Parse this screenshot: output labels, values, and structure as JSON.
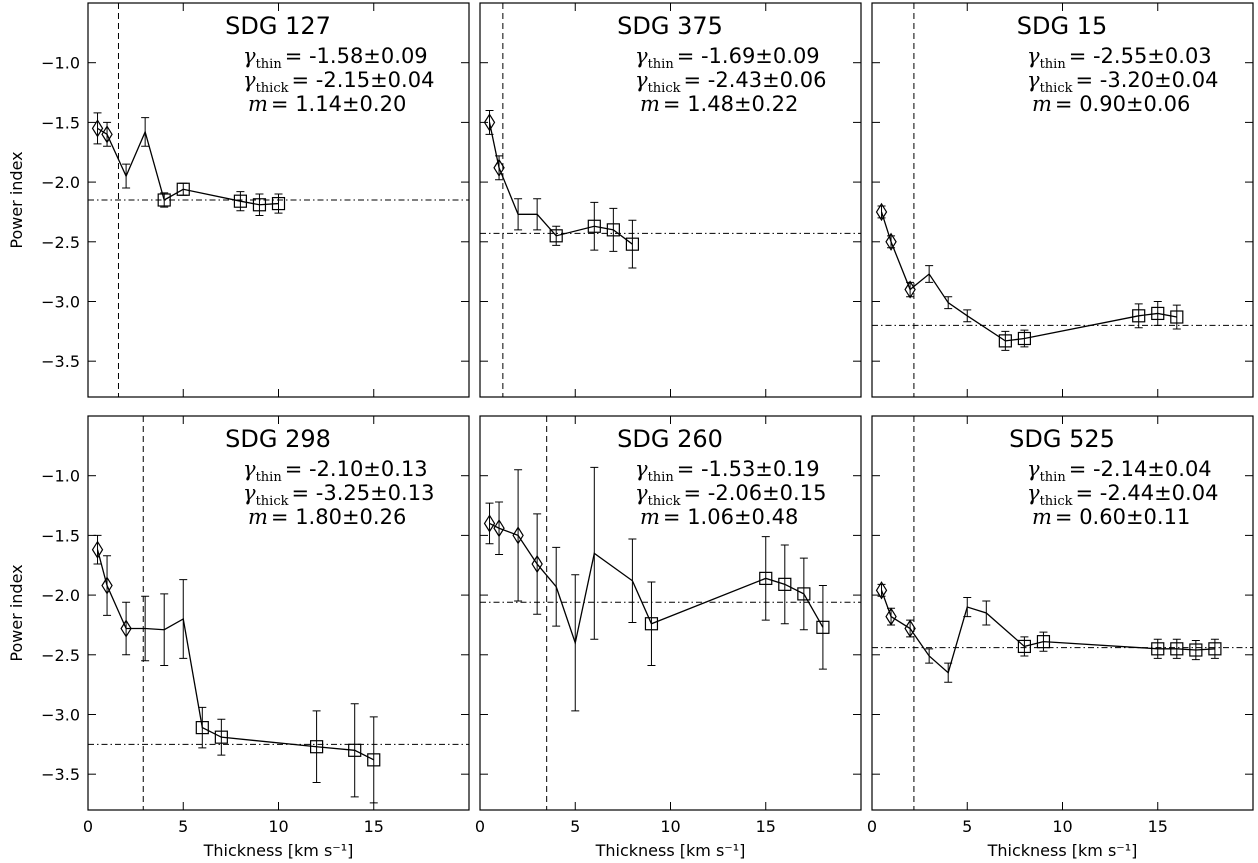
{
  "chart_data": [
    {
      "type": "errorbar",
      "title": "SDG 127",
      "annotations": [
        {
          "symbol": "γ",
          "sub": "thin",
          "value": "= -1.58±0.09"
        },
        {
          "symbol": "γ",
          "sub": "thick",
          "value": "= -2.15±0.04"
        },
        {
          "symbol": "m",
          "value": "= 1.14±0.20"
        }
      ],
      "x": [
        0.5,
        1,
        2,
        3,
        4,
        5,
        8,
        9,
        10
      ],
      "values": [
        -1.55,
        -1.6,
        -1.95,
        -1.58,
        -2.15,
        -2.06,
        -2.16,
        -2.19,
        -2.18
      ],
      "errors": [
        0.13,
        0.1,
        0.1,
        0.12,
        0.06,
        0.05,
        0.08,
        0.09,
        0.08
      ],
      "markers": [
        "diamond",
        "diamond",
        "none",
        "none",
        "square",
        "square",
        "square",
        "square",
        "square"
      ],
      "vline": 1.6,
      "hline": -2.15,
      "xlim": [
        0,
        20
      ],
      "ylim": [
        -3.8,
        -0.5
      ],
      "xticks": [
        0,
        5,
        10,
        15
      ],
      "ylabel": "Power index",
      "yticks": [
        {
          "value": -3.5,
          "label": "−3.5"
        },
        {
          "value": -3.0,
          "label": "−3.0"
        },
        {
          "value": -2.5,
          "label": "−2.5"
        },
        {
          "value": -2.0,
          "label": "−2.0"
        },
        {
          "value": -1.5,
          "label": "−1.5"
        },
        {
          "value": -1.0,
          "label": "−1.0"
        }
      ]
    },
    {
      "type": "errorbar",
      "title": "SDG 375",
      "annotations": [
        {
          "symbol": "γ",
          "sub": "thin",
          "value": "= -1.69±0.09"
        },
        {
          "symbol": "γ",
          "sub": "thick",
          "value": "= -2.43±0.06"
        },
        {
          "symbol": "m",
          "value": "= 1.48±0.22"
        }
      ],
      "x": [
        0.5,
        1,
        2,
        3,
        4,
        6,
        7,
        8
      ],
      "values": [
        -1.5,
        -1.88,
        -2.27,
        -2.27,
        -2.45,
        -2.37,
        -2.4,
        -2.52
      ],
      "errors": [
        0.1,
        0.1,
        0.13,
        0.13,
        0.08,
        0.2,
        0.18,
        0.2
      ],
      "markers": [
        "diamond",
        "diamond",
        "none",
        "none",
        "square",
        "square",
        "square",
        "square"
      ],
      "vline": 1.2,
      "hline": -2.43,
      "xlim": [
        0,
        20
      ],
      "ylim": [
        -3.8,
        -0.5
      ],
      "xticks": [
        0,
        5,
        10,
        15
      ],
      "yticks": [
        -3.5,
        -3.0,
        -2.5,
        -2.0,
        -1.5,
        -1.0
      ]
    },
    {
      "type": "errorbar",
      "title": "SDG 15",
      "annotations": [
        {
          "symbol": "γ",
          "sub": "thin",
          "value": "= -2.55±0.03"
        },
        {
          "symbol": "γ",
          "sub": "thick",
          "value": "= -3.20±0.04"
        },
        {
          "symbol": "m",
          "value": "= 0.90±0.06"
        }
      ],
      "x": [
        0.5,
        1,
        2,
        3,
        4,
        5,
        7,
        8,
        14,
        15,
        16
      ],
      "values": [
        -2.25,
        -2.5,
        -2.9,
        -2.77,
        -3.01,
        -3.12,
        -3.33,
        -3.31,
        -3.12,
        -3.1,
        -3.13
      ],
      "errors": [
        0.05,
        0.05,
        0.06,
        0.07,
        0.05,
        0.05,
        0.08,
        0.07,
        0.1,
        0.1,
        0.1
      ],
      "markers": [
        "diamond",
        "diamond",
        "diamond",
        "none",
        "none",
        "none",
        "square",
        "square",
        "square",
        "square",
        "square"
      ],
      "vline": 2.2,
      "hline": -3.2,
      "xlim": [
        0,
        20
      ],
      "ylim": [
        -3.8,
        -0.5
      ],
      "xticks": [
        0,
        5,
        10,
        15
      ],
      "yticks": [
        -3.5,
        -3.0,
        -2.5,
        -2.0,
        -1.5,
        -1.0
      ]
    },
    {
      "type": "errorbar",
      "title": "SDG 298",
      "annotations": [
        {
          "symbol": "γ",
          "sub": "thin",
          "value": "= -2.10±0.13"
        },
        {
          "symbol": "γ",
          "sub": "thick",
          "value": "= -3.25±0.13"
        },
        {
          "symbol": "m",
          "value": "= 1.80±0.26"
        }
      ],
      "x": [
        0.5,
        1,
        2,
        3,
        4,
        5,
        6,
        7,
        12,
        14,
        15
      ],
      "values": [
        -1.62,
        -1.92,
        -2.28,
        -2.28,
        -2.29,
        -2.2,
        -3.11,
        -3.19,
        -3.27,
        -3.3,
        -3.38
      ],
      "errors": [
        0.12,
        0.25,
        0.22,
        0.27,
        0.3,
        0.33,
        0.17,
        0.15,
        0.3,
        0.39,
        0.36
      ],
      "markers": [
        "diamond",
        "diamond",
        "diamond",
        "none",
        "none",
        "none",
        "square",
        "square",
        "square",
        "square",
        "square"
      ],
      "vline": 2.9,
      "hline": -3.25,
      "xlim": [
        0,
        20
      ],
      "ylim": [
        -3.8,
        -0.5
      ],
      "xticks": [
        0,
        5,
        10,
        15
      ],
      "xlabel": "Thickness [km s⁻¹]",
      "ylabel": "Power index",
      "yticks": [
        {
          "value": -3.5,
          "label": "−3.5"
        },
        {
          "value": -3.0,
          "label": "−3.0"
        },
        {
          "value": -2.5,
          "label": "−2.5"
        },
        {
          "value": -2.0,
          "label": "−2.0"
        },
        {
          "value": -1.5,
          "label": "−1.5"
        },
        {
          "value": -1.0,
          "label": "−1.0"
        }
      ]
    },
    {
      "type": "errorbar",
      "title": "SDG 260",
      "annotations": [
        {
          "symbol": "γ",
          "sub": "thin",
          "value": "= -1.53±0.19"
        },
        {
          "symbol": "γ",
          "sub": "thick",
          "value": "= -2.06±0.15"
        },
        {
          "symbol": "m",
          "value": "= 1.06±0.48"
        }
      ],
      "x": [
        0.5,
        1,
        2,
        3,
        4,
        5,
        6,
        8,
        9,
        15,
        16,
        17,
        18
      ],
      "values": [
        -1.4,
        -1.44,
        -1.5,
        -1.74,
        -1.93,
        -2.4,
        -1.65,
        -1.88,
        -2.24,
        -1.86,
        -1.91,
        -1.99,
        -2.27
      ],
      "errors": [
        0.17,
        0.22,
        0.55,
        0.42,
        0.33,
        0.57,
        0.72,
        0.35,
        0.35,
        0.35,
        0.33,
        0.3,
        0.35
      ],
      "markers": [
        "diamond",
        "diamond",
        "diamond",
        "diamond",
        "none",
        "none",
        "none",
        "none",
        "square",
        "square",
        "square",
        "square",
        "square"
      ],
      "vline": 3.5,
      "hline": -2.06,
      "xlim": [
        0,
        20
      ],
      "ylim": [
        -3.8,
        -0.5
      ],
      "xticks": [
        0,
        5,
        10,
        15
      ],
      "xlabel": "Thickness [km s⁻¹]",
      "yticks": [
        -3.5,
        -3.0,
        -2.5,
        -2.0,
        -1.5,
        -1.0
      ]
    },
    {
      "type": "errorbar",
      "title": "SDG 525",
      "annotations": [
        {
          "symbol": "γ",
          "sub": "thin",
          "value": "= -2.14±0.04"
        },
        {
          "symbol": "γ",
          "sub": "thick",
          "value": "= -2.44±0.04"
        },
        {
          "symbol": "m",
          "value": "= 0.60±0.11"
        }
      ],
      "x": [
        0.5,
        1,
        2,
        3,
        4,
        5,
        6,
        8,
        9,
        15,
        16,
        17,
        18
      ],
      "values": [
        -1.96,
        -2.18,
        -2.28,
        -2.51,
        -2.65,
        -2.1,
        -2.15,
        -2.43,
        -2.39,
        -2.45,
        -2.45,
        -2.46,
        -2.45
      ],
      "errors": [
        0.05,
        0.07,
        0.07,
        0.06,
        0.08,
        0.08,
        0.1,
        0.08,
        0.08,
        0.08,
        0.08,
        0.08,
        0.08
      ],
      "markers": [
        "diamond",
        "diamond",
        "diamond",
        "none",
        "none",
        "none",
        "none",
        "square",
        "square",
        "square",
        "square",
        "square",
        "square"
      ],
      "vline": 2.2,
      "hline": -2.44,
      "xlim": [
        0,
        20
      ],
      "ylim": [
        -3.8,
        -0.5
      ],
      "xticks": [
        0,
        5,
        10,
        15
      ],
      "xlabel": "Thickness [km s⁻¹]",
      "yticks": [
        -3.5,
        -3.0,
        -2.5,
        -2.0,
        -1.5,
        -1.0
      ]
    }
  ]
}
